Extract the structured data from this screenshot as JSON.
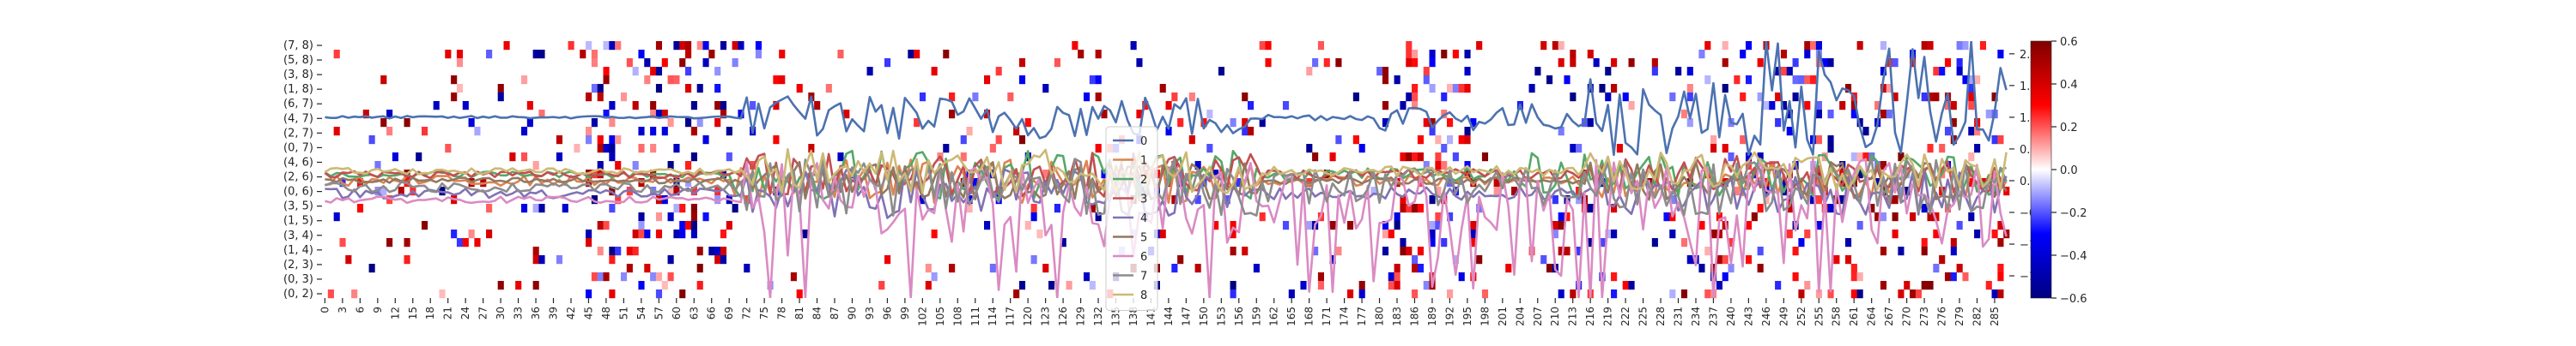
{
  "chart_data": {
    "type": "heatmap",
    "title": "",
    "xlabel": "",
    "ylabel": "",
    "n_columns": 288,
    "x_tick_step": 3,
    "x_tick_labels": [
      "0",
      "3",
      "6",
      "9",
      "12",
      "15",
      "18",
      "21",
      "24",
      "27",
      "30",
      "33",
      "36",
      "39",
      "42",
      "45",
      "48",
      "51",
      "54",
      "57",
      "60",
      "63",
      "66",
      "69",
      "72",
      "75",
      "78",
      "81",
      "84",
      "87",
      "90",
      "93",
      "96",
      "99",
      "102",
      "105",
      "108",
      "111",
      "114",
      "117",
      "120",
      "123",
      "126",
      "129",
      "132",
      "135",
      "138",
      "141",
      "144",
      "147",
      "150",
      "153",
      "156",
      "159",
      "162",
      "165",
      "168",
      "171",
      "174",
      "177",
      "180",
      "183",
      "186",
      "189",
      "192",
      "195",
      "198",
      "201",
      "204",
      "207",
      "210",
      "213",
      "216",
      "219",
      "222",
      "225",
      "228",
      "231",
      "234",
      "237",
      "240",
      "243",
      "246",
      "249",
      "252",
      "255",
      "258",
      "261",
      "264",
      "267",
      "270",
      "273",
      "276",
      "279",
      "282",
      "285"
    ],
    "y_tick_labels": [
      "(7, 8)",
      "(5, 8)",
      "(3, 8)",
      "(1, 8)",
      "(6, 7)",
      "(4, 7)",
      "(2, 7)",
      "(0, 7)",
      "(4, 6)",
      "(2, 6)",
      "(0, 6)",
      "(3, 5)",
      "(1, 5)",
      "(3, 4)",
      "(1, 4)",
      "(2, 3)",
      "(0, 3)",
      "(0, 2)"
    ],
    "heatmap_rows": 30,
    "colorbar": {
      "min": -0.6,
      "max": 0.6,
      "ticks": [
        0.6,
        0.4,
        0.2,
        0.0,
        -0.2,
        -0.4,
        -0.6
      ],
      "tick_labels": [
        "0.6",
        "0.4",
        "0.2",
        "0.0",
        "−0.2",
        "−0.4",
        "−0.6"
      ],
      "colormap": "seismic",
      "stops": [
        "#000080",
        "#0000ff",
        "#ffffff",
        "#ff0000",
        "#800000"
      ]
    },
    "right_axis": {
      "ylim": [
        -1.85,
        2.2
      ],
      "ticks": [
        2.0,
        1.5,
        1.0,
        0.5,
        0.0,
        -0.5,
        -1.0,
        -1.5
      ],
      "tick_labels": [
        "2.0",
        "1.5",
        "1.0",
        "0.5",
        "0.0",
        "−0.5",
        "−1.0",
        "−1.5"
      ]
    },
    "legend": {
      "placement": "center",
      "entries": [
        "0",
        "1",
        "2",
        "3",
        "4",
        "5",
        "6",
        "7",
        "8"
      ]
    },
    "series": [
      {
        "name": "0",
        "color": "#4c72b0",
        "base": 1.0,
        "regimes": [
          [
            0,
            72,
            0.02
          ],
          [
            72,
            158,
            0.35
          ],
          [
            158,
            180,
            0.05
          ],
          [
            180,
            220,
            0.22
          ],
          [
            220,
            288,
            0.6
          ]
        ]
      },
      {
        "name": "1",
        "color": "#dd8452",
        "base": 0.0,
        "regimes": [
          [
            0,
            48,
            0.08
          ],
          [
            48,
            70,
            0.06
          ],
          [
            70,
            160,
            0.35
          ],
          [
            160,
            216,
            0.08
          ],
          [
            216,
            288,
            0.3
          ]
        ]
      },
      {
        "name": "2",
        "color": "#55a868",
        "base": 0.1,
        "regimes": [
          [
            0,
            48,
            0.05
          ],
          [
            48,
            70,
            0.05
          ],
          [
            70,
            160,
            0.4
          ],
          [
            160,
            200,
            0.1
          ],
          [
            200,
            288,
            0.35
          ]
        ]
      },
      {
        "name": "3",
        "color": "#c44e52",
        "base": 0.1,
        "regimes": [
          [
            0,
            72,
            0.06
          ],
          [
            72,
            160,
            0.35
          ],
          [
            160,
            216,
            0.08
          ],
          [
            216,
            288,
            0.3
          ]
        ]
      },
      {
        "name": "4",
        "color": "#8172b3",
        "base": -0.2,
        "regimes": [
          [
            0,
            72,
            0.08
          ],
          [
            72,
            160,
            0.4
          ],
          [
            160,
            216,
            0.1
          ],
          [
            216,
            288,
            0.35
          ]
        ]
      },
      {
        "name": "5",
        "color": "#937860",
        "base": 0.0,
        "regimes": [
          [
            0,
            72,
            0.05
          ],
          [
            72,
            160,
            0.3
          ],
          [
            160,
            216,
            0.05
          ],
          [
            216,
            288,
            0.3
          ]
        ]
      },
      {
        "name": "6",
        "color": "#da8bc3",
        "base": -0.3,
        "regimes": [
          [
            0,
            72,
            0.05
          ],
          [
            72,
            160,
            0.6
          ],
          [
            160,
            216,
            0.5
          ],
          [
            216,
            288,
            0.7
          ]
        ]
      },
      {
        "name": "7",
        "color": "#8c8c8c",
        "base": -0.1,
        "regimes": [
          [
            0,
            72,
            0.08
          ],
          [
            72,
            160,
            0.45
          ],
          [
            160,
            216,
            0.3
          ],
          [
            216,
            288,
            0.45
          ]
        ]
      },
      {
        "name": "8",
        "color": "#ccb974",
        "base": 0.15,
        "regimes": [
          [
            0,
            72,
            0.05
          ],
          [
            72,
            160,
            0.35
          ],
          [
            160,
            216,
            0.08
          ],
          [
            216,
            288,
            0.3
          ]
        ]
      }
    ]
  }
}
